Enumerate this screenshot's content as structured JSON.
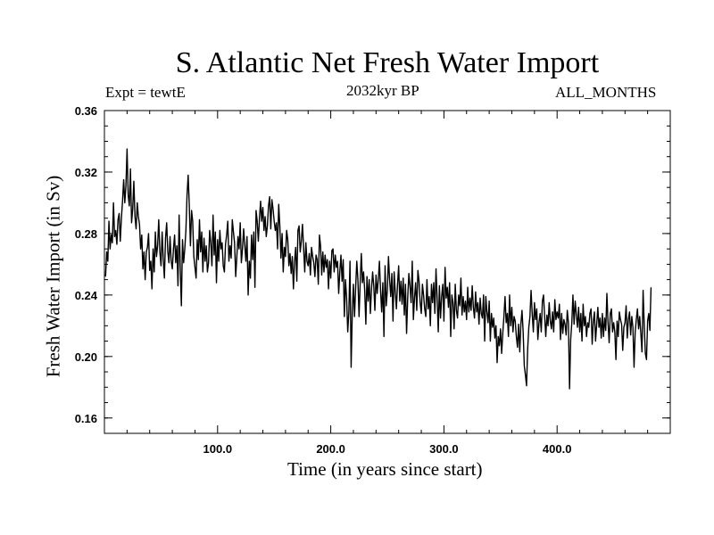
{
  "chart_data": {
    "type": "line",
    "title": "S. Atlantic Net Fresh Water Import",
    "subtitle": "2032kyr BP",
    "annotation_left": "Expt = tewtE",
    "annotation_right": "ALL_MONTHS",
    "xlabel": "Time (in years since start)",
    "ylabel": "Fresh Water Import (in Sv)",
    "xlim": [
      0,
      500
    ],
    "ylim": [
      0.15,
      0.36
    ],
    "x_ticks": [
      100,
      200,
      300,
      400
    ],
    "x_tick_labels": [
      "100.0",
      "200.0",
      "300.0",
      "400.0"
    ],
    "y_ticks": [
      0.16,
      0.2,
      0.24,
      0.28,
      0.32,
      0.36
    ],
    "y_tick_labels": [
      "0.16",
      "0.20",
      "0.24",
      "0.28",
      "0.32",
      "0.36"
    ],
    "grid": false,
    "series": [
      {
        "name": "Fresh Water Import",
        "color": "#000000",
        "x_start": 1,
        "x_step": 1,
        "values": [
          0.252,
          0.268,
          0.262,
          0.288,
          0.27,
          0.279,
          0.274,
          0.3,
          0.278,
          0.282,
          0.273,
          0.289,
          0.293,
          0.275,
          0.29,
          0.301,
          0.315,
          0.3,
          0.311,
          0.335,
          0.305,
          0.298,
          0.322,
          0.287,
          0.296,
          0.314,
          0.291,
          0.283,
          0.3,
          0.291,
          0.286,
          0.27,
          0.279,
          0.257,
          0.268,
          0.25,
          0.268,
          0.271,
          0.28,
          0.256,
          0.262,
          0.244,
          0.27,
          0.255,
          0.281,
          0.265,
          0.272,
          0.289,
          0.268,
          0.259,
          0.281,
          0.263,
          0.251,
          0.277,
          0.287,
          0.268,
          0.261,
          0.278,
          0.262,
          0.257,
          0.27,
          0.279,
          0.261,
          0.272,
          0.246,
          0.292,
          0.257,
          0.233,
          0.276,
          0.261,
          0.27,
          0.282,
          0.305,
          0.318,
          0.298,
          0.272,
          0.295,
          0.288,
          0.265,
          0.258,
          0.251,
          0.276,
          0.263,
          0.289,
          0.268,
          0.281,
          0.255,
          0.277,
          0.262,
          0.272,
          0.255,
          0.261,
          0.282,
          0.274,
          0.259,
          0.292,
          0.266,
          0.281,
          0.248,
          0.276,
          0.262,
          0.282,
          0.27,
          0.274,
          0.259,
          0.255,
          0.273,
          0.279,
          0.288,
          0.262,
          0.272,
          0.264,
          0.289,
          0.281,
          0.274,
          0.252,
          0.265,
          0.278,
          0.27,
          0.287,
          0.261,
          0.27,
          0.283,
          0.273,
          0.262,
          0.278,
          0.24,
          0.262,
          0.251,
          0.279,
          0.263,
          0.281,
          0.245,
          0.295,
          0.288,
          0.275,
          0.29,
          0.301,
          0.288,
          0.297,
          0.282,
          0.291,
          0.278,
          0.285,
          0.298,
          0.304,
          0.283,
          0.302,
          0.296,
          0.288,
          0.282,
          0.287,
          0.27,
          0.299,
          0.285,
          0.264,
          0.28,
          0.255,
          0.271,
          0.265,
          0.282,
          0.276,
          0.259,
          0.267,
          0.254,
          0.265,
          0.244,
          0.262,
          0.271,
          0.249,
          0.282,
          0.285,
          0.268,
          0.275,
          0.286,
          0.271,
          0.255,
          0.274,
          0.262,
          0.259,
          0.267,
          0.253,
          0.271,
          0.265,
          0.261,
          0.252,
          0.266,
          0.263,
          0.247,
          0.279,
          0.272,
          0.253,
          0.268,
          0.255,
          0.266,
          0.258,
          0.263,
          0.244,
          0.262,
          0.251,
          0.269,
          0.27,
          0.255,
          0.266,
          0.258,
          0.262,
          0.241,
          0.255,
          0.266,
          0.249,
          0.263,
          0.226,
          0.25,
          0.238,
          0.216,
          0.229,
          0.262,
          0.193,
          0.228,
          0.247,
          0.226,
          0.245,
          0.262,
          0.25,
          0.226,
          0.248,
          0.267,
          0.248,
          0.255,
          0.243,
          0.221,
          0.252,
          0.236,
          0.25,
          0.228,
          0.244,
          0.255,
          0.246,
          0.23,
          0.253,
          0.241,
          0.25,
          0.262,
          0.243,
          0.229,
          0.248,
          0.213,
          0.259,
          0.233,
          0.243,
          0.265,
          0.25,
          0.239,
          0.254,
          0.223,
          0.255,
          0.242,
          0.231,
          0.247,
          0.259,
          0.236,
          0.249,
          0.234,
          0.251,
          0.227,
          0.247,
          0.215,
          0.238,
          0.254,
          0.246,
          0.235,
          0.262,
          0.224,
          0.238,
          0.248,
          0.23,
          0.256,
          0.249,
          0.235,
          0.228,
          0.247,
          0.24,
          0.231,
          0.226,
          0.25,
          0.231,
          0.239,
          0.22,
          0.247,
          0.235,
          0.248,
          0.228,
          0.257,
          0.238,
          0.216,
          0.246,
          0.225,
          0.239,
          0.247,
          0.223,
          0.258,
          0.238,
          0.245,
          0.232,
          0.248,
          0.213,
          0.24,
          0.235,
          0.218,
          0.247,
          0.23,
          0.225,
          0.24,
          0.233,
          0.251,
          0.227,
          0.239,
          0.229,
          0.236,
          0.224,
          0.245,
          0.229,
          0.238,
          0.23,
          0.246,
          0.232,
          0.225,
          0.242,
          0.229,
          0.235,
          0.221,
          0.238,
          0.228,
          0.225,
          0.24,
          0.21,
          0.239,
          0.229,
          0.222,
          0.236,
          0.21,
          0.228,
          0.219,
          0.225,
          0.212,
          0.22,
          0.196,
          0.213,
          0.207,
          0.218,
          0.202,
          0.215,
          0.226,
          0.239,
          0.222,
          0.228,
          0.213,
          0.24,
          0.22,
          0.232,
          0.216,
          0.226,
          0.223,
          0.213,
          0.206,
          0.221,
          0.203,
          0.221,
          0.23,
          0.216,
          0.194,
          0.188,
          0.181,
          0.205,
          0.219,
          0.226,
          0.243,
          0.228,
          0.216,
          0.235,
          0.224,
          0.231,
          0.211,
          0.222,
          0.228,
          0.216,
          0.236,
          0.24,
          0.226,
          0.213,
          0.227,
          0.22,
          0.235,
          0.223,
          0.218,
          0.229,
          0.216,
          0.237,
          0.224,
          0.229,
          0.225,
          0.234,
          0.211,
          0.228,
          0.215,
          0.224,
          0.221,
          0.214,
          0.23,
          0.222,
          0.179,
          0.211,
          0.222,
          0.24,
          0.221,
          0.236,
          0.227,
          0.219,
          0.232,
          0.216,
          0.228,
          0.21,
          0.234,
          0.22,
          0.226,
          0.213,
          0.222,
          0.219,
          0.228,
          0.231,
          0.208,
          0.223,
          0.229,
          0.21,
          0.221,
          0.232,
          0.219,
          0.225,
          0.212,
          0.228,
          0.213,
          0.225,
          0.217,
          0.241,
          0.222,
          0.209,
          0.228,
          0.231,
          0.216,
          0.222,
          0.216,
          0.198,
          0.223,
          0.213,
          0.229,
          0.224,
          0.221,
          0.204,
          0.219,
          0.222,
          0.233,
          0.212,
          0.224,
          0.229,
          0.214,
          0.226,
          0.219,
          0.193,
          0.216,
          0.224,
          0.231,
          0.218,
          0.226,
          0.215,
          0.203,
          0.243,
          0.22,
          0.202,
          0.198,
          0.223,
          0.228,
          0.217,
          0.245
        ]
      }
    ]
  }
}
